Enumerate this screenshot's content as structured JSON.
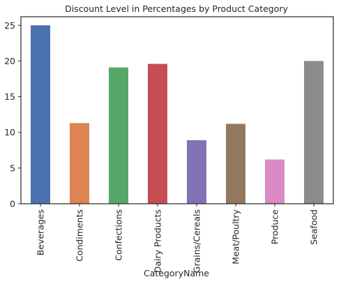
{
  "chart_data": {
    "type": "bar",
    "title": "Discount Level in Percentages by Product Category",
    "xlabel": "CategoryName",
    "ylabel": "",
    "categories": [
      "Beverages",
      "Condiments",
      "Confections",
      "Dairy Products",
      "Grains/Cereals",
      "Meat/Poultry",
      "Produce",
      "Seafood"
    ],
    "values": [
      25.0,
      11.3,
      19.1,
      19.6,
      8.9,
      11.2,
      6.2,
      20.0
    ],
    "colors": [
      "#4C72B0",
      "#DD8452",
      "#55A868",
      "#C44E52",
      "#8172B3",
      "#937860",
      "#DA8BC3",
      "#8C8C8C"
    ],
    "ylim": [
      0,
      26.2
    ],
    "yticks": [
      0,
      5,
      10,
      15,
      20,
      25
    ],
    "grid": false,
    "legend": "none"
  }
}
